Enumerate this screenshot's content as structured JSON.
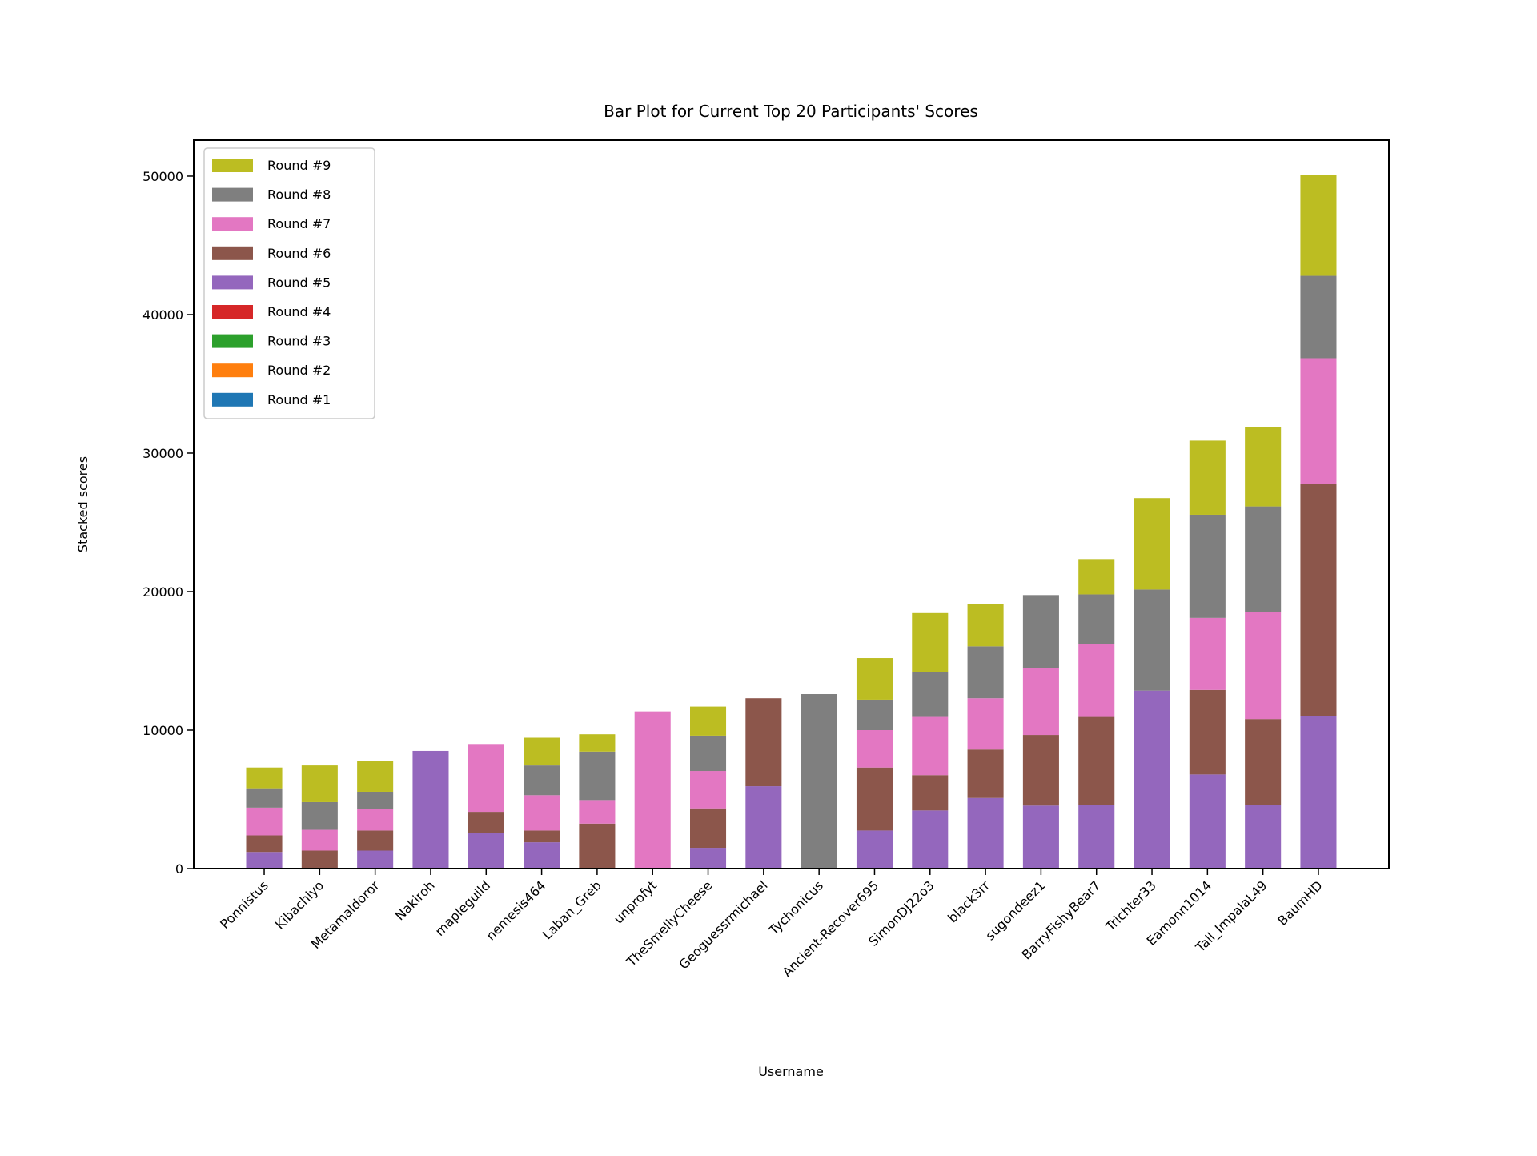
{
  "chart_data": {
    "type": "bar",
    "stacked": true,
    "title": "Bar Plot for Current Top 20 Participants' Scores",
    "xlabel": "Username",
    "ylabel": "Stacked scores",
    "ylim": [
      0,
      52600
    ],
    "yticks": [
      0,
      10000,
      20000,
      30000,
      40000,
      50000
    ],
    "grid": false,
    "legend_placement": "top-left",
    "categories": [
      "Ponnistus",
      "Kibachiyo",
      "Metamaldoror",
      "Nakiroh",
      "mapleguild",
      "nemesis464",
      "Laban_Greb",
      "unprofyt",
      "TheSmellyCheese",
      "Geoguessrmichael",
      "Tychonicus",
      "Ancient-Recover695",
      "SimonDJ22o3",
      "black3rr",
      "sugondeez1",
      "BarryFishyBear7",
      "Trichter33",
      "Eamonn1014",
      "Tall_ImpalaL49",
      "BaumHD"
    ],
    "series": [
      {
        "name": "Round #1",
        "color": "#1f77b4",
        "values": [
          0,
          0,
          0,
          0,
          0,
          0,
          0,
          0,
          0,
          0,
          0,
          0,
          0,
          0,
          0,
          0,
          0,
          0,
          0,
          0
        ]
      },
      {
        "name": "Round #2",
        "color": "#ff7f0e",
        "values": [
          0,
          0,
          0,
          0,
          0,
          0,
          0,
          0,
          0,
          0,
          0,
          0,
          0,
          0,
          0,
          0,
          0,
          0,
          0,
          0
        ]
      },
      {
        "name": "Round #3",
        "color": "#2ca02c",
        "values": [
          0,
          0,
          0,
          0,
          0,
          0,
          0,
          0,
          0,
          0,
          0,
          0,
          0,
          0,
          0,
          0,
          0,
          0,
          0,
          0
        ]
      },
      {
        "name": "Round #4",
        "color": "#d62728",
        "values": [
          0,
          0,
          0,
          0,
          0,
          0,
          0,
          0,
          0,
          0,
          0,
          0,
          0,
          0,
          0,
          0,
          0,
          0,
          0,
          0
        ]
      },
      {
        "name": "Round #5",
        "color": "#9467bd",
        "values": [
          1200,
          0,
          1300,
          8500,
          2600,
          1900,
          0,
          0,
          1500,
          5950,
          0,
          2750,
          4200,
          5100,
          4550,
          4600,
          12850,
          6800,
          4600,
          11000
        ]
      },
      {
        "name": "Round #6",
        "color": "#8c564b",
        "values": [
          1200,
          1300,
          1450,
          0,
          1500,
          850,
          3250,
          0,
          2850,
          6350,
          0,
          4550,
          2550,
          3500,
          5100,
          6350,
          0,
          6100,
          6200,
          16750
        ]
      },
      {
        "name": "Round #7",
        "color": "#e377c2",
        "values": [
          2000,
          1500,
          1550,
          0,
          4900,
          2550,
          1700,
          11350,
          2700,
          0,
          0,
          2700,
          4200,
          3700,
          4850,
          5250,
          0,
          5200,
          7750,
          9100
        ]
      },
      {
        "name": "Round #8",
        "color": "#7f7f7f",
        "values": [
          1400,
          2000,
          1250,
          0,
          0,
          2150,
          3500,
          0,
          2550,
          0,
          12600,
          2200,
          3250,
          3750,
          5250,
          3600,
          7300,
          7450,
          7600,
          5950
        ]
      },
      {
        "name": "Round #9",
        "color": "#bcbd22",
        "values": [
          1500,
          2650,
          2200,
          0,
          0,
          2000,
          1250,
          0,
          2100,
          0,
          0,
          3000,
          4250,
          3050,
          0,
          2550,
          6600,
          5350,
          5750,
          7300
        ]
      }
    ]
  }
}
